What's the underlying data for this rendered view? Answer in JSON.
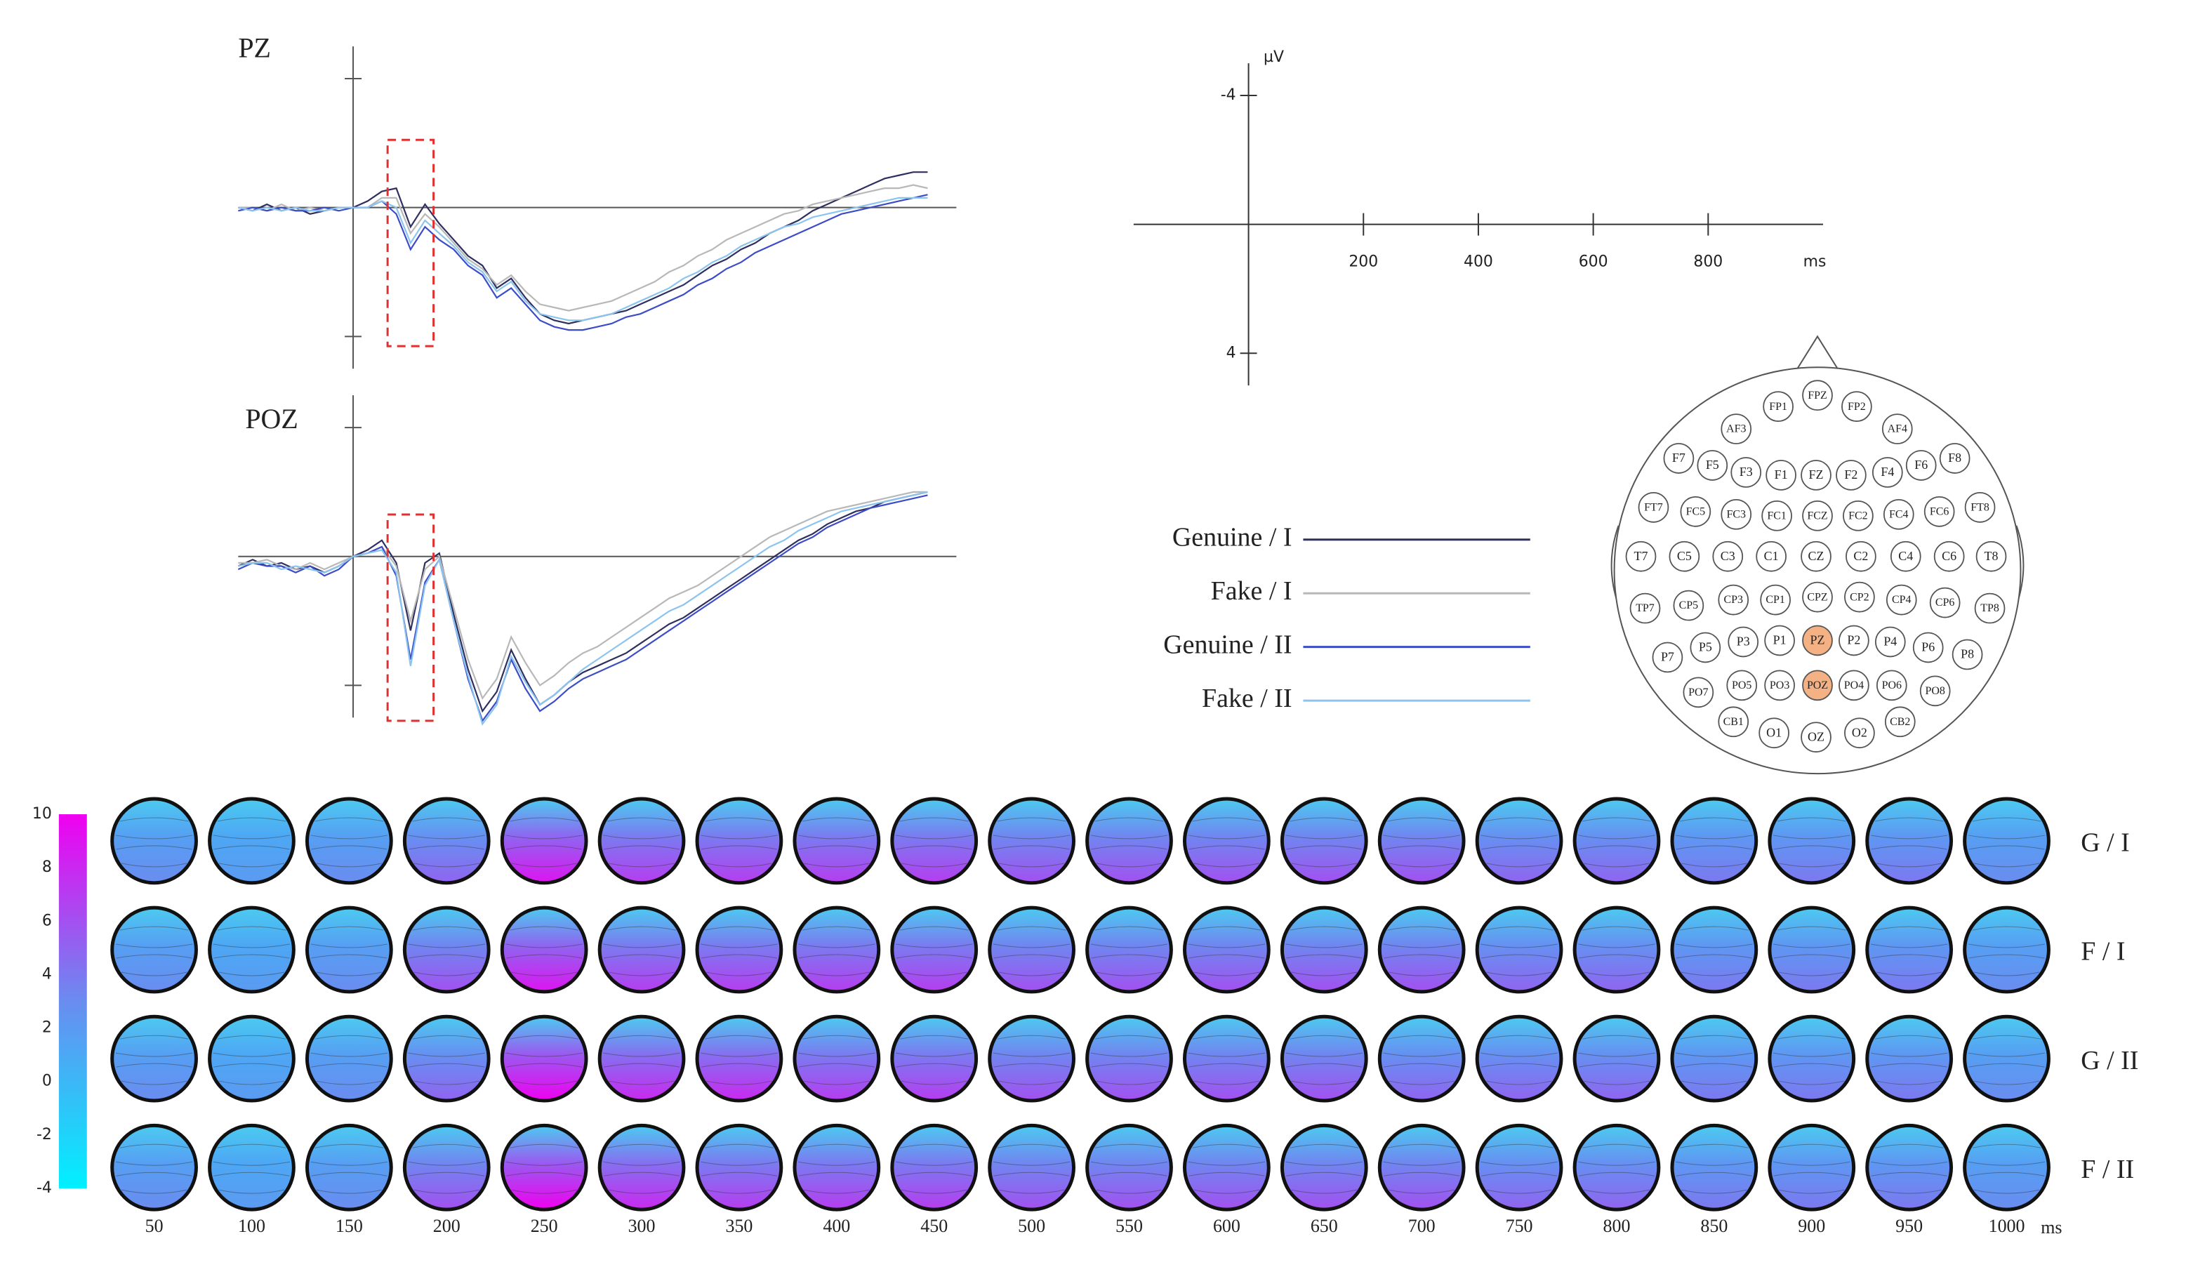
{
  "chart_data": [
    {
      "type": "line",
      "title": "PZ",
      "x": [
        -200,
        -175,
        -150,
        -125,
        -100,
        -75,
        -50,
        -25,
        0,
        25,
        50,
        75,
        100,
        125,
        150,
        175,
        200,
        225,
        250,
        275,
        300,
        325,
        350,
        375,
        400,
        425,
        450,
        475,
        500,
        525,
        550,
        575,
        600,
        625,
        650,
        675,
        700,
        725,
        750,
        775,
        800,
        825,
        850,
        875,
        900,
        925,
        950,
        975,
        1000
      ],
      "series": [
        {
          "name": "Genuine / I",
          "color": "#2f2f5f",
          "values": [
            0,
            0.1,
            -0.1,
            0.1,
            0,
            0.2,
            0.1,
            0,
            0,
            -0.2,
            -0.5,
            -0.6,
            0.6,
            -0.1,
            0.5,
            1.0,
            1.5,
            1.8,
            2.5,
            2.2,
            2.8,
            3.3,
            3.5,
            3.6,
            3.5,
            3.4,
            3.3,
            3.2,
            3.0,
            2.8,
            2.6,
            2.4,
            2.1,
            1.8,
            1.6,
            1.3,
            1.1,
            0.8,
            0.6,
            0.4,
            0.1,
            -0.1,
            -0.3,
            -0.5,
            -0.7,
            -0.9,
            -1.0,
            -1.1,
            -1.1
          ]
        },
        {
          "name": "Fake / I",
          "color": "#b8b8b8",
          "values": [
            0,
            0,
            0.1,
            -0.1,
            0.1,
            0,
            0.1,
            0,
            0,
            0,
            -0.3,
            -0.3,
            0.8,
            0.2,
            0.6,
            1.1,
            1.6,
            1.9,
            2.4,
            2.1,
            2.6,
            3.0,
            3.1,
            3.2,
            3.1,
            3.0,
            2.9,
            2.7,
            2.5,
            2.3,
            2.0,
            1.8,
            1.5,
            1.3,
            1.0,
            0.8,
            0.6,
            0.4,
            0.2,
            0.1,
            -0.1,
            -0.2,
            -0.3,
            -0.4,
            -0.5,
            -0.6,
            -0.6,
            -0.7,
            -0.6
          ]
        },
        {
          "name": "Genuine / II",
          "color": "#3c4cc8",
          "values": [
            0.1,
            0,
            0.1,
            0,
            0.1,
            0.1,
            0,
            0.1,
            0,
            0,
            -0.2,
            0.2,
            1.3,
            0.6,
            1.0,
            1.3,
            1.8,
            2.1,
            2.8,
            2.5,
            3.0,
            3.5,
            3.7,
            3.8,
            3.8,
            3.7,
            3.6,
            3.4,
            3.3,
            3.1,
            2.9,
            2.7,
            2.4,
            2.2,
            1.9,
            1.7,
            1.4,
            1.2,
            1.0,
            0.8,
            0.6,
            0.4,
            0.2,
            0.1,
            0,
            -0.1,
            -0.2,
            -0.3,
            -0.4
          ]
        },
        {
          "name": "Fake / II",
          "color": "#8cc4f0",
          "values": [
            0,
            0.1,
            0,
            0.1,
            0,
            0.1,
            0.1,
            0,
            0,
            0,
            -0.2,
            0,
            1.1,
            0.4,
            0.8,
            1.2,
            1.7,
            2.0,
            2.6,
            2.3,
            2.9,
            3.3,
            3.4,
            3.5,
            3.5,
            3.4,
            3.3,
            3.1,
            2.9,
            2.7,
            2.5,
            2.2,
            2.0,
            1.7,
            1.5,
            1.2,
            1.0,
            0.8,
            0.6,
            0.5,
            0.3,
            0.2,
            0.1,
            0,
            -0.1,
            -0.2,
            -0.3,
            -0.3,
            -0.3
          ]
        }
      ],
      "xlim": [
        -200,
        1050
      ],
      "ylim": [
        5,
        -5
      ],
      "yticks": [
        -4,
        4
      ],
      "highlight": {
        "x": [
          60,
          140
        ],
        "y": [
          -2.1,
          4.3
        ],
        "color": "#e03030"
      }
    },
    {
      "type": "line",
      "title": "POZ",
      "x": [
        -200,
        -175,
        -150,
        -125,
        -100,
        -75,
        -50,
        -25,
        0,
        25,
        50,
        75,
        100,
        125,
        150,
        175,
        200,
        225,
        250,
        275,
        300,
        325,
        350,
        375,
        400,
        425,
        450,
        475,
        500,
        525,
        550,
        575,
        600,
        625,
        650,
        675,
        700,
        725,
        750,
        775,
        800,
        825,
        850,
        875,
        900,
        925,
        950,
        975,
        1000
      ],
      "series": [
        {
          "color": "#2f2f5f",
          "values": [
            0.3,
            0.1,
            0.3,
            0.2,
            0.4,
            0.3,
            0.5,
            0.3,
            0,
            -0.2,
            -0.5,
            0.2,
            2.3,
            0.2,
            -0.1,
            1.8,
            3.5,
            4.8,
            4.2,
            2.9,
            3.8,
            4.6,
            4.3,
            3.9,
            3.6,
            3.4,
            3.2,
            3.0,
            2.7,
            2.4,
            2.1,
            1.9,
            1.6,
            1.3,
            1.0,
            0.7,
            0.4,
            0.1,
            -0.2,
            -0.5,
            -0.7,
            -1.0,
            -1.2,
            -1.4,
            -1.5,
            -1.7,
            -1.8,
            -1.9,
            -2.0
          ]
        },
        {
          "color": "#b8b8b8",
          "values": [
            0.2,
            0.2,
            0.1,
            0.3,
            0.4,
            0.2,
            0.4,
            0.2,
            0,
            -0.1,
            -0.3,
            0.3,
            2.0,
            0.4,
            0,
            1.6,
            3.2,
            4.4,
            3.8,
            2.5,
            3.3,
            4.0,
            3.7,
            3.3,
            3.0,
            2.8,
            2.5,
            2.2,
            1.9,
            1.6,
            1.3,
            1.1,
            0.9,
            0.6,
            0.3,
            0,
            -0.3,
            -0.6,
            -0.8,
            -1.0,
            -1.2,
            -1.4,
            -1.5,
            -1.6,
            -1.7,
            -1.8,
            -1.9,
            -2.0,
            -2.0
          ]
        },
        {
          "color": "#3c4cc8",
          "values": [
            0.4,
            0.2,
            0.3,
            0.3,
            0.5,
            0.3,
            0.6,
            0.4,
            0,
            -0.1,
            -0.3,
            0.6,
            3.2,
            0.8,
            0.1,
            2.0,
            3.8,
            5.1,
            4.5,
            3.2,
            4.1,
            4.8,
            4.5,
            4.1,
            3.8,
            3.6,
            3.4,
            3.2,
            2.9,
            2.6,
            2.3,
            2.0,
            1.7,
            1.4,
            1.1,
            0.8,
            0.5,
            0.2,
            -0.1,
            -0.4,
            -0.6,
            -0.9,
            -1.1,
            -1.3,
            -1.5,
            -1.6,
            -1.7,
            -1.8,
            -1.9
          ]
        },
        {
          "color": "#8cc4f0",
          "values": [
            0.3,
            0.2,
            0.2,
            0.4,
            0.3,
            0.4,
            0.5,
            0.3,
            0,
            -0.1,
            -0.2,
            0.5,
            3.4,
            0.9,
            0.1,
            2.0,
            3.7,
            5.2,
            4.6,
            3.1,
            3.9,
            4.6,
            4.3,
            3.9,
            3.5,
            3.2,
            2.9,
            2.6,
            2.3,
            2.0,
            1.7,
            1.5,
            1.2,
            0.9,
            0.6,
            0.3,
            0.0,
            -0.3,
            -0.5,
            -0.8,
            -1.0,
            -1.2,
            -1.4,
            -1.5,
            -1.6,
            -1.7,
            -1.8,
            -1.9,
            -2.0
          ]
        }
      ],
      "xlim": [
        -200,
        1050
      ],
      "ylim": [
        5,
        -5
      ],
      "yticks": [
        -4,
        4
      ],
      "highlight": {
        "x": [
          60,
          140
        ],
        "y": [
          -1.3,
          5.1
        ],
        "color": "#e03030"
      }
    },
    {
      "type": "axes",
      "xlabel": "ms",
      "ylabel": "µV",
      "xlim": [
        -200,
        1000
      ],
      "ylim": [
        5,
        -5
      ],
      "xticks": [
        200,
        400,
        600,
        800
      ],
      "yticks": [
        -4,
        4
      ]
    },
    {
      "type": "topomap",
      "xlabel": "ms",
      "categories": [
        50,
        100,
        150,
        200,
        250,
        300,
        350,
        400,
        450,
        500,
        550,
        600,
        650,
        700,
        750,
        800,
        850,
        900,
        950,
        1000
      ],
      "series": [
        {
          "name": "G / I",
          "values": [
            3,
            2,
            3,
            5,
            9,
            7,
            7,
            7,
            7,
            6,
            6,
            6,
            6,
            6,
            5,
            5,
            4,
            4,
            4,
            3
          ]
        },
        {
          "name": "F / I",
          "values": [
            3,
            2,
            3,
            6,
            9,
            7,
            7,
            7,
            7,
            6,
            6,
            6,
            6,
            6,
            5,
            5,
            4,
            4,
            4,
            3
          ]
        },
        {
          "name": "G / II",
          "values": [
            3,
            2,
            3,
            5,
            10,
            8,
            8,
            7,
            7,
            6,
            6,
            6,
            6,
            5,
            5,
            5,
            4,
            4,
            4,
            3
          ]
        },
        {
          "name": "F / II",
          "values": [
            3,
            2,
            3,
            6,
            10,
            8,
            7,
            7,
            7,
            6,
            6,
            6,
            6,
            6,
            5,
            5,
            4,
            4,
            4,
            3
          ]
        }
      ],
      "clim": [
        -4,
        10
      ],
      "cticks": [
        -4,
        -2,
        0,
        2,
        4,
        6,
        8,
        10
      ],
      "colormap": [
        "#00f0ff",
        "#6a8cf0",
        "#f000f0"
      ]
    }
  ],
  "montage": {
    "rows": [
      [
        "FP1",
        "FPZ",
        "FP2"
      ],
      [
        "AF3",
        "AF4"
      ],
      [
        "F7",
        "F5",
        "F3",
        "F1",
        "FZ",
        "F2",
        "F4",
        "F6",
        "F8"
      ],
      [
        "FT7",
        "FC5",
        "FC3",
        "FC1",
        "FCZ",
        "FC2",
        "FC4",
        "FC6",
        "FT8"
      ],
      [
        "T7",
        "C5",
        "C3",
        "C1",
        "CZ",
        "C2",
        "C4",
        "C6",
        "T8"
      ],
      [
        "TP7",
        "CP5",
        "CP3",
        "CP1",
        "CPZ",
        "CP2",
        "CP4",
        "CP6",
        "TP8"
      ],
      [
        "P7",
        "P5",
        "P3",
        "P1",
        "PZ",
        "P2",
        "P4",
        "P6",
        "P8"
      ],
      [
        "PO7",
        "PO5",
        "PO3",
        "POZ",
        "PO4",
        "PO6",
        "PO8"
      ],
      [
        "CB1",
        "O1",
        "OZ",
        "O2",
        "CB2"
      ]
    ],
    "highlight": [
      "PZ",
      "POZ"
    ],
    "highlight_color": "#f4b183"
  }
}
